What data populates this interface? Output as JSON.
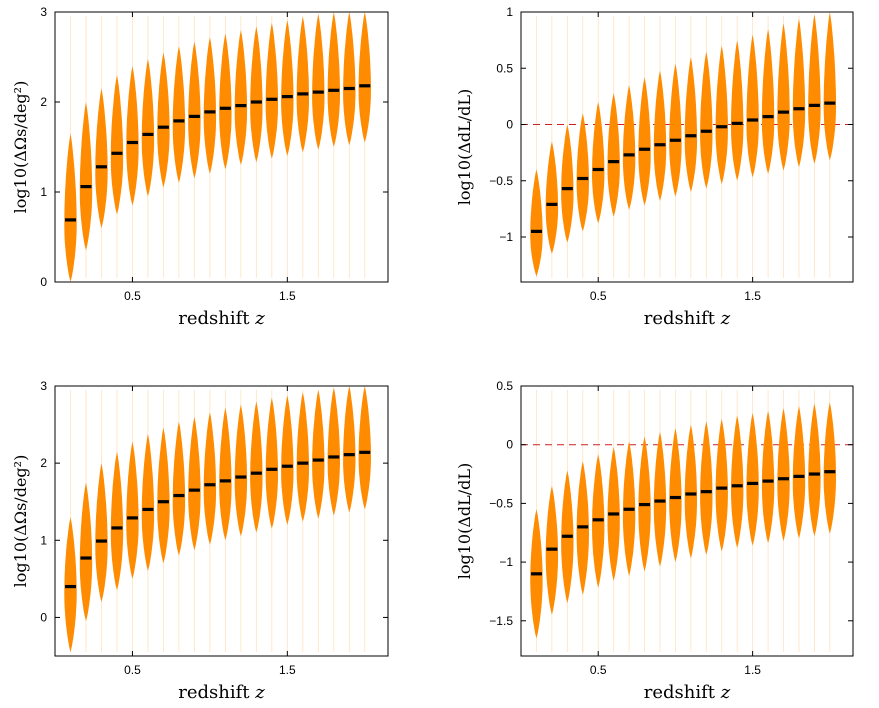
{
  "colors": {
    "violin": "#ff8c00",
    "median": "#000000",
    "reference": "#cc2222"
  },
  "chart_data": [
    {
      "type": "violin",
      "panel": "top-left",
      "xlabel": "redshift z",
      "ylabel": "log10(ΔΩs/deg²)",
      "xlim": [
        0.0,
        2.15
      ],
      "ylim": [
        0,
        3
      ],
      "xticks": [
        0.5,
        1.5
      ],
      "xtick_labels": [
        "0.5",
        "1.5"
      ],
      "yticks": [
        0,
        1,
        2,
        3
      ],
      "ytick_labels": [
        "0",
        "1",
        "2",
        "3"
      ],
      "reference_line": null,
      "x": [
        0.1,
        0.2,
        0.3,
        0.4,
        0.5,
        0.6,
        0.7,
        0.8,
        0.9,
        1.0,
        1.1,
        1.2,
        1.3,
        1.4,
        1.5,
        1.6,
        1.7,
        1.8,
        1.9,
        2.0
      ],
      "median": [
        0.69,
        1.06,
        1.28,
        1.43,
        1.55,
        1.64,
        1.72,
        1.79,
        1.84,
        1.89,
        1.93,
        1.96,
        2.0,
        2.03,
        2.06,
        2.09,
        2.11,
        2.13,
        2.15,
        2.18
      ],
      "lower": [
        0.0,
        0.35,
        0.6,
        0.75,
        0.85,
        0.95,
        1.05,
        1.1,
        1.15,
        1.2,
        1.25,
        1.3,
        1.33,
        1.37,
        1.4,
        1.44,
        1.47,
        1.5,
        1.52,
        1.55
      ],
      "upper": [
        1.65,
        2.0,
        2.15,
        2.3,
        2.4,
        2.48,
        2.55,
        2.62,
        2.67,
        2.72,
        2.76,
        2.8,
        2.84,
        2.88,
        2.91,
        2.95,
        2.98,
        3.0,
        3.0,
        3.0
      ]
    },
    {
      "type": "violin",
      "panel": "top-right",
      "xlabel": "redshift z",
      "ylabel": "log10(ΔdL/dL)",
      "xlim": [
        0.0,
        2.15
      ],
      "ylim": [
        -1.4,
        1.0
      ],
      "xticks": [
        0.5,
        1.5
      ],
      "xtick_labels": [
        "0.5",
        "1.5"
      ],
      "yticks": [
        -1,
        -0.5,
        0,
        0.5,
        1
      ],
      "ytick_labels": [
        "−1",
        "−0.5",
        "0",
        "0.5",
        "1"
      ],
      "reference_line": 0,
      "x": [
        0.1,
        0.2,
        0.3,
        0.4,
        0.5,
        0.6,
        0.7,
        0.8,
        0.9,
        1.0,
        1.1,
        1.2,
        1.3,
        1.4,
        1.5,
        1.6,
        1.7,
        1.8,
        1.9,
        2.0
      ],
      "median": [
        -0.95,
        -0.71,
        -0.57,
        -0.48,
        -0.4,
        -0.33,
        -0.27,
        -0.22,
        -0.18,
        -0.14,
        -0.1,
        -0.06,
        -0.02,
        0.01,
        0.04,
        0.07,
        0.11,
        0.14,
        0.17,
        0.19
      ],
      "lower": [
        -1.35,
        -1.15,
        -1.05,
        -0.95,
        -0.88,
        -0.82,
        -0.76,
        -0.72,
        -0.68,
        -0.64,
        -0.6,
        -0.57,
        -0.53,
        -0.5,
        -0.47,
        -0.44,
        -0.41,
        -0.38,
        -0.35,
        -0.32
      ],
      "upper": [
        -0.4,
        -0.15,
        0.0,
        0.1,
        0.2,
        0.28,
        0.35,
        0.42,
        0.48,
        0.54,
        0.6,
        0.65,
        0.7,
        0.75,
        0.8,
        0.85,
        0.9,
        0.94,
        0.98,
        1.0
      ]
    },
    {
      "type": "violin",
      "panel": "bottom-left",
      "xlabel": "redshift z",
      "ylabel": "log10(ΔΩs/deg²)",
      "xlim": [
        0.0,
        2.15
      ],
      "ylim": [
        -0.5,
        3
      ],
      "xticks": [
        0.5,
        1.5
      ],
      "xtick_labels": [
        "0.5",
        "1.5"
      ],
      "yticks": [
        0,
        1,
        2,
        3
      ],
      "ytick_labels": [
        "0",
        "1",
        "2",
        "3"
      ],
      "reference_line": null,
      "x": [
        0.1,
        0.2,
        0.3,
        0.4,
        0.5,
        0.6,
        0.7,
        0.8,
        0.9,
        1.0,
        1.1,
        1.2,
        1.3,
        1.4,
        1.5,
        1.6,
        1.7,
        1.8,
        1.9,
        2.0
      ],
      "median": [
        0.4,
        0.77,
        0.99,
        1.16,
        1.29,
        1.4,
        1.5,
        1.58,
        1.65,
        1.72,
        1.77,
        1.82,
        1.87,
        1.92,
        1.96,
        2.0,
        2.04,
        2.08,
        2.11,
        2.14
      ],
      "lower": [
        -0.45,
        -0.05,
        0.2,
        0.35,
        0.5,
        0.6,
        0.7,
        0.8,
        0.87,
        0.94,
        1.0,
        1.05,
        1.1,
        1.15,
        1.2,
        1.24,
        1.28,
        1.32,
        1.36,
        1.4
      ],
      "upper": [
        1.3,
        1.75,
        2.0,
        2.15,
        2.28,
        2.38,
        2.46,
        2.54,
        2.6,
        2.66,
        2.72,
        2.76,
        2.8,
        2.85,
        2.88,
        2.92,
        2.95,
        2.98,
        3.0,
        3.0
      ]
    },
    {
      "type": "violin",
      "panel": "bottom-right",
      "xlabel": "redshift z",
      "ylabel": "log10(ΔdL/dL)",
      "xlim": [
        0.0,
        2.15
      ],
      "ylim": [
        -1.8,
        0.5
      ],
      "xticks": [
        0.5,
        1.5
      ],
      "xtick_labels": [
        "0.5",
        "1.5"
      ],
      "yticks": [
        -1.5,
        -1,
        -0.5,
        0,
        0.5
      ],
      "ytick_labels": [
        "−1.5",
        "−1",
        "−0.5",
        "0",
        "0.5"
      ],
      "reference_line": 0,
      "x": [
        0.1,
        0.2,
        0.3,
        0.4,
        0.5,
        0.6,
        0.7,
        0.8,
        0.9,
        1.0,
        1.1,
        1.2,
        1.3,
        1.4,
        1.5,
        1.6,
        1.7,
        1.8,
        1.9,
        2.0
      ],
      "median": [
        -1.1,
        -0.89,
        -0.78,
        -0.7,
        -0.64,
        -0.59,
        -0.55,
        -0.51,
        -0.48,
        -0.45,
        -0.42,
        -0.4,
        -0.37,
        -0.35,
        -0.33,
        -0.31,
        -0.29,
        -0.27,
        -0.25,
        -0.23
      ],
      "lower": [
        -1.65,
        -1.45,
        -1.35,
        -1.28,
        -1.22,
        -1.16,
        -1.12,
        -1.08,
        -1.04,
        -1.0,
        -0.97,
        -0.94,
        -0.91,
        -0.88,
        -0.86,
        -0.84,
        -0.82,
        -0.8,
        -0.78,
        -0.76
      ],
      "upper": [
        -0.55,
        -0.35,
        -0.22,
        -0.14,
        -0.08,
        -0.02,
        0.03,
        0.07,
        0.11,
        0.14,
        0.17,
        0.2,
        0.22,
        0.25,
        0.27,
        0.29,
        0.31,
        0.33,
        0.35,
        0.36
      ]
    }
  ]
}
